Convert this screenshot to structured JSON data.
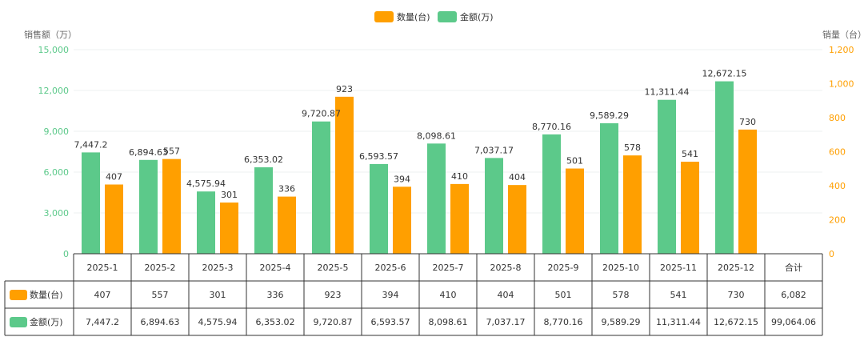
{
  "legend": {
    "items": [
      {
        "label": "数量(台)",
        "color": "#FF9F00"
      },
      {
        "label": "金额(万)",
        "color": "#5CC98A"
      }
    ]
  },
  "chart_data": {
    "type": "bar",
    "categories": [
      "2025-1",
      "2025-2",
      "2025-3",
      "2025-4",
      "2025-5",
      "2025-6",
      "2025-7",
      "2025-8",
      "2025-9",
      "2025-10",
      "2025-11",
      "2025-12"
    ],
    "total_label": "合计",
    "y_left": {
      "label": "销售额（万）",
      "range": [
        0,
        15000
      ],
      "ticks": [
        "0",
        "3,000",
        "6,000",
        "9,000",
        "12,000",
        "15,000"
      ],
      "tick_values": [
        0,
        3000,
        6000,
        9000,
        12000,
        15000
      ],
      "color": "#5CC98A"
    },
    "y_right": {
      "label": "销量（台）",
      "range": [
        0,
        1200
      ],
      "ticks": [
        "0",
        "200",
        "400",
        "600",
        "800",
        "1,000",
        "1,200"
      ],
      "tick_values": [
        0,
        200,
        400,
        600,
        800,
        1000,
        1200
      ],
      "color": "#FF9F00"
    },
    "series": [
      {
        "name": "金额(万)",
        "axis": "left",
        "color": "#5CC98A",
        "values": [
          7447.2,
          6894.63,
          4575.94,
          6353.02,
          9720.87,
          6593.57,
          8098.61,
          7037.17,
          8770.16,
          9589.29,
          11311.44,
          12672.15
        ],
        "labels": [
          "7,447.2",
          "6,894.63",
          "4,575.94",
          "6,353.02",
          "9,720.87",
          "6,593.57",
          "8,098.61",
          "7,037.17",
          "8,770.16",
          "9,589.29",
          "11,311.44",
          "12,672.15"
        ],
        "total": "99,064.06"
      },
      {
        "name": "数量(台)",
        "axis": "right",
        "color": "#FF9F00",
        "values": [
          407,
          557,
          301,
          336,
          923,
          394,
          410,
          404,
          501,
          578,
          541,
          730
        ],
        "labels": [
          "407",
          "557",
          "301",
          "336",
          "923",
          "394",
          "410",
          "404",
          "501",
          "578",
          "541",
          "730"
        ],
        "total": "6,082"
      }
    ],
    "table_rows": [
      {
        "name": "数量(台)",
        "color": "#FF9F00",
        "series_index": 1
      },
      {
        "name": "金额(万)",
        "color": "#5CC98A",
        "series_index": 0
      }
    ],
    "grid": true,
    "legend_position": "top-center"
  }
}
